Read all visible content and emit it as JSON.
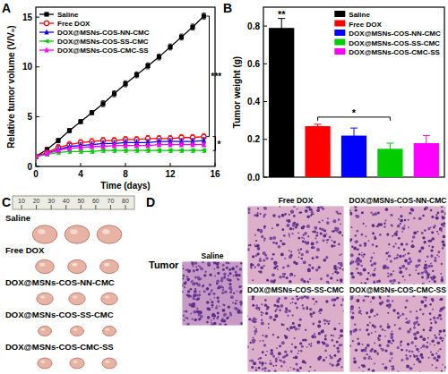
{
  "chart_data": [
    {
      "type": "line",
      "x_label": "Time (days)",
      "y_label": "Relative tumor volume (V/V₀)",
      "x": [
        0,
        1,
        2,
        3,
        4,
        5,
        6,
        7,
        8,
        9,
        10,
        11,
        12,
        13,
        14,
        15
      ],
      "xlim": [
        0,
        16
      ],
      "xticks": [
        0,
        4,
        8,
        12,
        16
      ],
      "ylim": [
        0,
        16
      ],
      "yticks": [
        0,
        5,
        10,
        15
      ],
      "legend": "upper left",
      "series": [
        {
          "name": "Saline",
          "color": "#000000",
          "marker": "square",
          "values": [
            1,
            1.7,
            2.6,
            3.6,
            4.5,
            5.4,
            6.3,
            7.3,
            8.3,
            9.2,
            10.1,
            11.0,
            12.0,
            13.0,
            14.0,
            15.1
          ],
          "errors": [
            0.1,
            0.2,
            0.2,
            0.2,
            0.2,
            0.2,
            0.3,
            0.3,
            0.3,
            0.3,
            0.3,
            0.3,
            0.3,
            0.3,
            0.3,
            0.3
          ]
        },
        {
          "name": "Free DOX",
          "color": "#ff0000",
          "marker": "circle-open",
          "values": [
            1,
            1.4,
            1.9,
            2.2,
            2.4,
            2.5,
            2.6,
            2.6,
            2.7,
            2.7,
            2.8,
            2.8,
            2.8,
            2.9,
            2.9,
            3.0
          ],
          "errors": [
            0.1,
            0.2,
            0.3,
            0.3,
            0.3,
            0.3,
            0.3,
            0.3,
            0.3,
            0.3,
            0.3,
            0.3,
            0.3,
            0.3,
            0.3,
            0.3
          ]
        },
        {
          "name": "DOX@MSNs-COS-NN-CMC",
          "color": "#0000ff",
          "marker": "triangle-up",
          "values": [
            1,
            1.3,
            1.7,
            2.0,
            2.1,
            2.2,
            2.3,
            2.3,
            2.4,
            2.4,
            2.4,
            2.5,
            2.5,
            2.5,
            2.5,
            2.6
          ],
          "errors": [
            0.1,
            0.2,
            0.3,
            0.3,
            0.3,
            0.3,
            0.3,
            0.3,
            0.3,
            0.3,
            0.3,
            0.3,
            0.3,
            0.3,
            0.3,
            0.3
          ]
        },
        {
          "name": "DOX@MSNs-COS-SS-CMC",
          "color": "#00cc00",
          "marker": "triangle-left",
          "values": [
            1,
            1.2,
            1.4,
            1.5,
            1.5,
            1.5,
            1.6,
            1.6,
            1.6,
            1.6,
            1.6,
            1.6,
            1.6,
            1.6,
            1.6,
            1.6
          ],
          "errors": [
            0.1,
            0.1,
            0.2,
            0.2,
            0.2,
            0.2,
            0.2,
            0.2,
            0.2,
            0.2,
            0.2,
            0.2,
            0.2,
            0.2,
            0.2,
            0.2
          ]
        },
        {
          "name": "DOX@MSNs-COS-CMC-SS",
          "color": "#ff00ff",
          "marker": "triangle-up",
          "values": [
            1,
            1.3,
            1.6,
            1.8,
            1.9,
            2.0,
            2.0,
            2.1,
            2.1,
            2.1,
            2.1,
            2.2,
            2.2,
            2.2,
            2.2,
            2.2
          ],
          "errors": [
            0.1,
            0.2,
            0.2,
            0.2,
            0.2,
            0.2,
            0.2,
            0.2,
            0.2,
            0.2,
            0.2,
            0.2,
            0.2,
            0.2,
            0.2,
            0.2
          ]
        }
      ],
      "annotations": [
        "***",
        "*"
      ]
    },
    {
      "type": "bar",
      "y_label": "Tumor weight (g)",
      "categories": [
        "Saline",
        "Free DOX",
        "DOX@MSNs-COS-NN-CMC",
        "DOX@MSNs-COS-SS-CMC",
        "DOX@MSNs-COS-CMC-SS"
      ],
      "values": [
        0.79,
        0.27,
        0.22,
        0.15,
        0.18
      ],
      "errors": [
        0.05,
        0.01,
        0.04,
        0.03,
        0.04
      ],
      "colors": [
        "#000000",
        "#ff0000",
        "#0000ff",
        "#00cc00",
        "#ff00ff"
      ],
      "ylim": [
        0,
        0.9
      ],
      "yticks": [
        {
          "value": 0,
          "label": "0.0"
        },
        0.2,
        0.4,
        0.6,
        0.8
      ],
      "legend": "upper right",
      "tick_labels": "y",
      "annotations": [
        "**",
        "*"
      ]
    }
  ],
  "panel_labels": [
    "A",
    "B",
    "C",
    "D"
  ],
  "photos": {
    "ruler_ticks": [
      10,
      20,
      30,
      40,
      50,
      60,
      70,
      80
    ],
    "rows": [
      "Saline",
      "Free DOX",
      "DOX@MSNs-COS-NN-CMC",
      "DOX@MSNs-COS-SS-CMC",
      "DOX@MSNs-COS-CMC-SS"
    ]
  },
  "histology": {
    "title": "Tumor",
    "images": [
      "Saline",
      "Free DOX",
      "DOX@MSNs-COS-NN-CMC",
      "DOX@MSNs-COS-SS-CMC",
      "DOX@MSNs-COS-CMC-SS"
    ]
  }
}
